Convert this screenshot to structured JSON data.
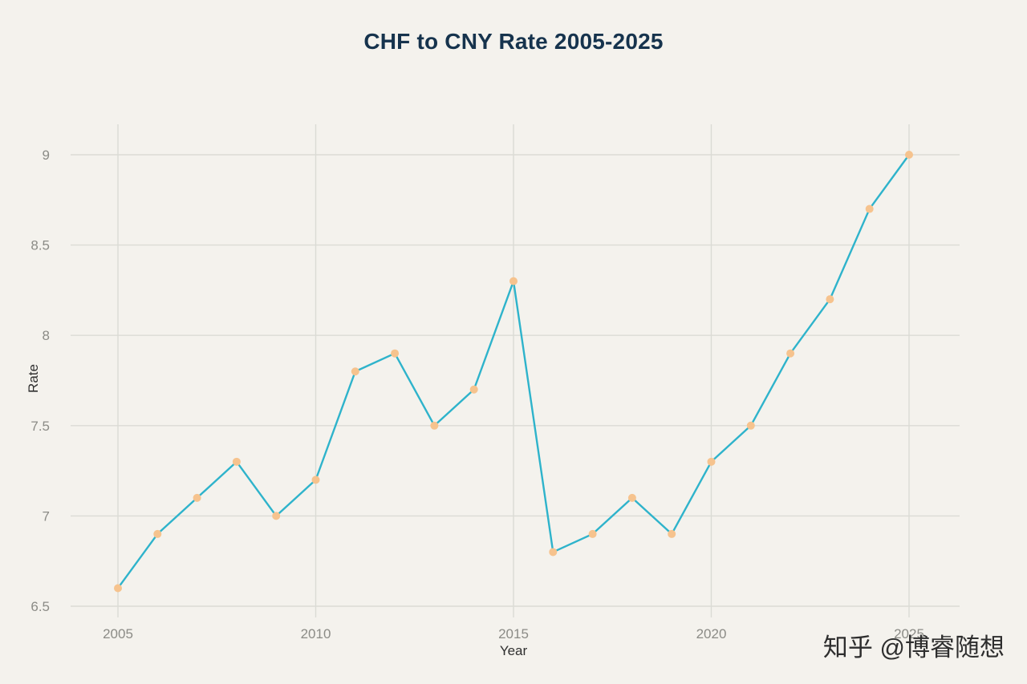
{
  "chart_data": {
    "type": "line",
    "title": "CHF to CNY Rate 2005-2025",
    "xlabel": "Year",
    "ylabel": "Rate",
    "x": [
      2005,
      2006,
      2007,
      2008,
      2009,
      2010,
      2011,
      2012,
      2013,
      2014,
      2015,
      2016,
      2017,
      2018,
      2019,
      2020,
      2021,
      2022,
      2023,
      2024,
      2025
    ],
    "values": [
      6.6,
      6.9,
      7.1,
      7.3,
      7.0,
      7.2,
      7.8,
      7.9,
      7.5,
      7.7,
      8.3,
      6.8,
      6.9,
      7.1,
      6.9,
      7.3,
      7.5,
      7.9,
      8.2,
      8.7,
      9.0
    ],
    "xlim": [
      2005,
      2025
    ],
    "ylim": [
      6.5,
      9
    ],
    "xticks": [
      2005,
      2010,
      2015,
      2020,
      2025
    ],
    "xtick_labels": [
      "2005",
      "2010",
      "2015",
      "2020",
      "2025"
    ],
    "yticks": [
      6.5,
      7,
      7.5,
      8,
      8.5,
      9
    ],
    "ytick_labels": [
      "6.5",
      "7",
      "7.5",
      "8",
      "8.5",
      "9"
    ],
    "grid": true,
    "legend": false,
    "colors": {
      "background": "#f4f2ed",
      "line": "#2eb3cb",
      "marker": "#f6c38e",
      "grid": "#dbdbd5",
      "title": "#16334d",
      "tick_label": "#8b8b86",
      "axis_label": "#2f2f2f"
    }
  },
  "watermark": {
    "text": "知乎 @博睿随想"
  }
}
